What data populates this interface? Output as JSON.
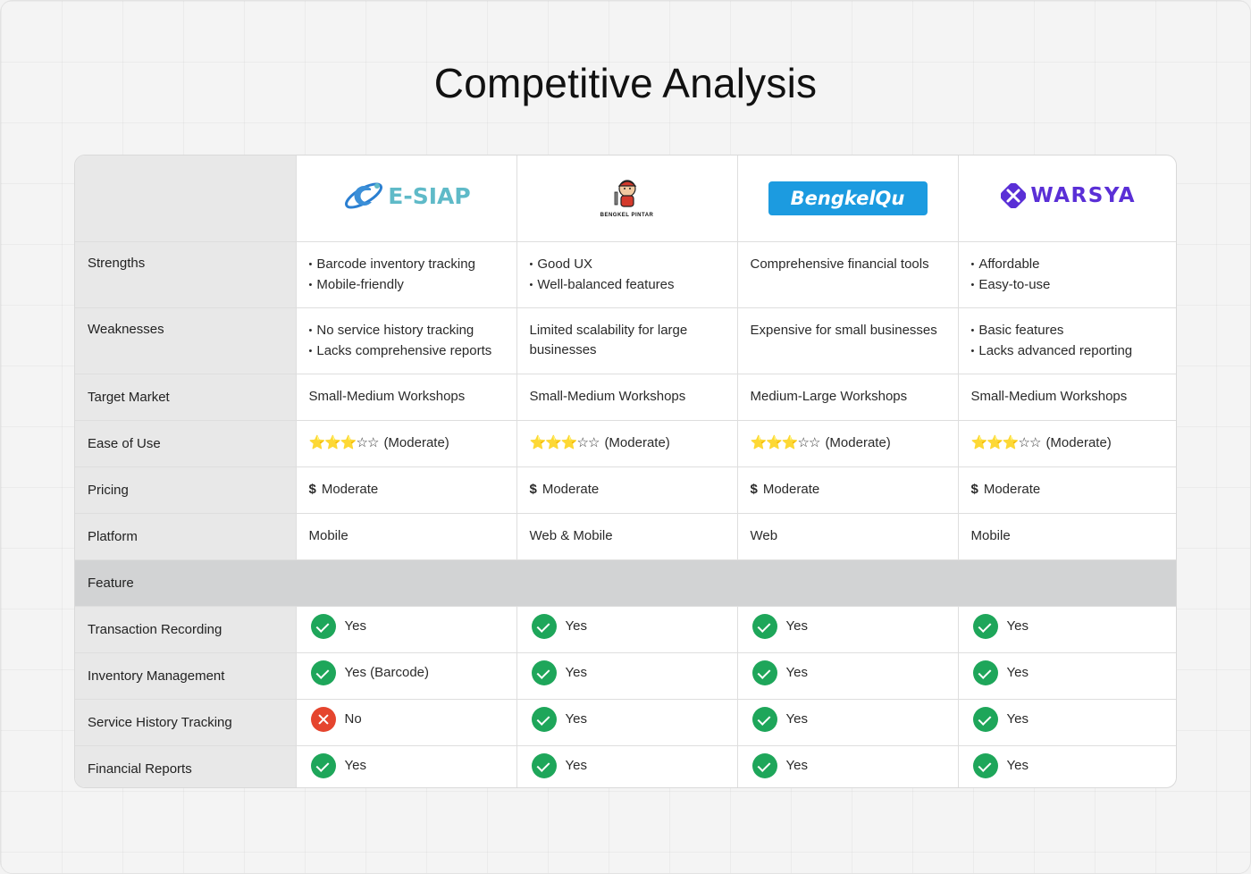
{
  "title": "Competitive Analysis",
  "competitors": [
    {
      "logo_text": "E-SIAP",
      "logo_icon": "orbit-e-icon"
    },
    {
      "logo_text": "BENGKEL PINTAR",
      "logo_icon": "mechanic-mascot-icon"
    },
    {
      "logo_text": "BengkelQu",
      "logo_icon": "bengkelqu-wordmark"
    },
    {
      "logo_text": "WARSYA",
      "logo_icon": "cross-tools-icon"
    }
  ],
  "rows": {
    "strengths": {
      "label": "Strengths",
      "values": [
        [
          "Barcode inventory tracking",
          "Mobile-friendly"
        ],
        [
          "Good UX",
          "Well-balanced features"
        ],
        "Comprehensive financial tools",
        [
          "Affordable",
          "Easy-to-use"
        ]
      ]
    },
    "weaknesses": {
      "label": "Weaknesses",
      "values": [
        [
          "No service history tracking",
          "Lacks comprehensive reports"
        ],
        "Limited scalability for large businesses",
        "Expensive for small businesses",
        [
          "Basic features",
          "Lacks advanced reporting"
        ]
      ]
    },
    "target_market": {
      "label": "Target Market",
      "values": [
        "Small-Medium Workshops",
        "Small-Medium Workshops",
        "Medium-Large Workshops",
        "Small-Medium Workshops"
      ]
    },
    "ease_of_use": {
      "label": "Ease of Use",
      "stars_filled": "⭐⭐⭐",
      "stars_empty": "☆☆",
      "rating": 3,
      "rating_max": 5,
      "values": [
        "(Moderate)",
        "(Moderate)",
        "(Moderate)",
        "(Moderate)"
      ]
    },
    "pricing": {
      "label": "Pricing",
      "symbol": "$",
      "values": [
        "Moderate",
        "Moderate",
        "Moderate",
        "Moderate"
      ]
    },
    "platform": {
      "label": "Platform",
      "values": [
        "Mobile",
        "Web & Mobile",
        "Web",
        "Mobile"
      ]
    }
  },
  "feature_section_label": "Feature",
  "features": [
    {
      "label": "Transaction Recording",
      "values": [
        {
          "status": "yes",
          "text": "Yes"
        },
        {
          "status": "yes",
          "text": "Yes"
        },
        {
          "status": "yes",
          "text": "Yes"
        },
        {
          "status": "yes",
          "text": "Yes"
        }
      ]
    },
    {
      "label": "Inventory Management",
      "values": [
        {
          "status": "yes",
          "text": "Yes (Barcode)"
        },
        {
          "status": "yes",
          "text": "Yes"
        },
        {
          "status": "yes",
          "text": "Yes"
        },
        {
          "status": "yes",
          "text": "Yes"
        }
      ]
    },
    {
      "label": "Service History Tracking",
      "values": [
        {
          "status": "no",
          "text": "No"
        },
        {
          "status": "yes",
          "text": "Yes"
        },
        {
          "status": "yes",
          "text": "Yes"
        },
        {
          "status": "yes",
          "text": "Yes"
        }
      ]
    },
    {
      "label": "Financial Reports",
      "values": [
        {
          "status": "yes",
          "text": "Yes"
        },
        {
          "status": "yes",
          "text": "Yes"
        },
        {
          "status": "yes",
          "text": "Yes"
        },
        {
          "status": "yes",
          "text": "Yes"
        }
      ]
    }
  ],
  "colors": {
    "yes": "#1ea65a",
    "no": "#e5452e",
    "star": "#f2b500",
    "bengkelqu": "#1c9be0",
    "warsya": "#5a2fd6",
    "esiap": "#5fbac8"
  }
}
